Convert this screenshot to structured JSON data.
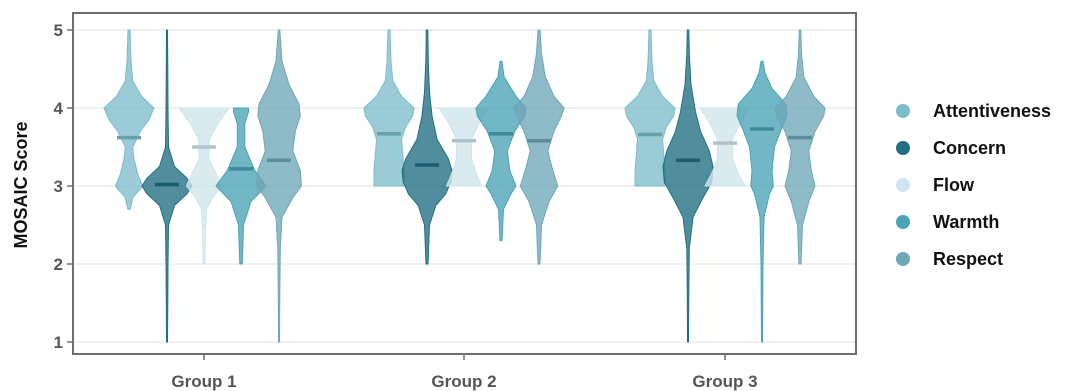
{
  "chart_data": {
    "type": "violin",
    "ylabel": "MOSAIC Score",
    "xlabel": "",
    "ylim": [
      1,
      5
    ],
    "yticks": [
      1,
      2,
      3,
      4,
      5
    ],
    "grid": "horizontal",
    "legend_position": "right",
    "categories": [
      "Group 1",
      "Group 2",
      "Group 3"
    ],
    "series": [
      {
        "name": "Attentiveness",
        "color": "#7dbdca",
        "means": [
          3.62,
          3.67,
          3.66
        ],
        "ranges": [
          [
            2.7,
            5.0
          ],
          [
            3.0,
            5.0
          ],
          [
            3.0,
            5.0
          ]
        ],
        "density": [
          [
            [
              2.7,
              0.05
            ],
            [
              2.85,
              0.15
            ],
            [
              3.0,
              0.55
            ],
            [
              3.15,
              0.35
            ],
            [
              3.35,
              0.2
            ],
            [
              3.5,
              0.15
            ],
            [
              3.7,
              0.45
            ],
            [
              3.85,
              0.8
            ],
            [
              4.0,
              1.0
            ],
            [
              4.15,
              0.5
            ],
            [
              4.35,
              0.15
            ],
            [
              4.6,
              0.08
            ],
            [
              4.8,
              0.06
            ],
            [
              5.0,
              0.04
            ]
          ],
          [
            [
              3.0,
              0.6
            ],
            [
              3.2,
              0.6
            ],
            [
              3.4,
              0.55
            ],
            [
              3.6,
              0.5
            ],
            [
              3.75,
              0.65
            ],
            [
              3.9,
              0.95
            ],
            [
              4.0,
              1.0
            ],
            [
              4.15,
              0.5
            ],
            [
              4.35,
              0.15
            ],
            [
              4.6,
              0.08
            ],
            [
              4.8,
              0.06
            ],
            [
              5.0,
              0.04
            ]
          ],
          [
            [
              3.0,
              0.6
            ],
            [
              3.2,
              0.6
            ],
            [
              3.4,
              0.55
            ],
            [
              3.6,
              0.5
            ],
            [
              3.75,
              0.65
            ],
            [
              3.9,
              0.95
            ],
            [
              4.0,
              1.0
            ],
            [
              4.15,
              0.5
            ],
            [
              4.35,
              0.15
            ],
            [
              4.6,
              0.08
            ],
            [
              4.8,
              0.06
            ],
            [
              5.0,
              0.04
            ]
          ]
        ]
      },
      {
        "name": "Concern",
        "color": "#1f6e83",
        "means": [
          3.02,
          3.27,
          3.33
        ],
        "ranges": [
          [
            1.0,
            5.0
          ],
          [
            2.0,
            5.0
          ],
          [
            1.0,
            5.0
          ]
        ],
        "density": [
          [
            [
              1.0,
              0.02
            ],
            [
              1.5,
              0.03
            ],
            [
              2.0,
              0.04
            ],
            [
              2.5,
              0.06
            ],
            [
              2.75,
              0.3
            ],
            [
              2.9,
              0.8
            ],
            [
              3.0,
              1.0
            ],
            [
              3.1,
              0.8
            ],
            [
              3.25,
              0.3
            ],
            [
              3.5,
              0.06
            ],
            [
              4.0,
              0.04
            ],
            [
              4.5,
              0.03
            ],
            [
              5.0,
              0.02
            ]
          ],
          [
            [
              2.0,
              0.04
            ],
            [
              2.5,
              0.1
            ],
            [
              2.75,
              0.35
            ],
            [
              2.9,
              0.75
            ],
            [
              3.05,
              0.95
            ],
            [
              3.2,
              1.0
            ],
            [
              3.35,
              0.85
            ],
            [
              3.6,
              0.4
            ],
            [
              3.9,
              0.2
            ],
            [
              4.2,
              0.1
            ],
            [
              4.6,
              0.05
            ],
            [
              5.0,
              0.03
            ]
          ],
          [
            [
              1.0,
              0.02
            ],
            [
              1.6,
              0.03
            ],
            [
              2.2,
              0.05
            ],
            [
              2.6,
              0.2
            ],
            [
              2.85,
              0.6
            ],
            [
              3.05,
              0.95
            ],
            [
              3.25,
              1.0
            ],
            [
              3.45,
              0.85
            ],
            [
              3.7,
              0.5
            ],
            [
              3.95,
              0.3
            ],
            [
              4.3,
              0.12
            ],
            [
              4.7,
              0.05
            ],
            [
              5.0,
              0.03
            ]
          ]
        ]
      },
      {
        "name": "Flow",
        "color": "#cfe5ec",
        "means": [
          3.5,
          3.58,
          3.55
        ],
        "ranges": [
          [
            2.0,
            4.0
          ],
          [
            3.0,
            4.0
          ],
          [
            3.0,
            4.0
          ]
        ],
        "density": [
          [
            [
              2.0,
              0.04
            ],
            [
              2.4,
              0.05
            ],
            [
              2.7,
              0.1
            ],
            [
              2.85,
              0.35
            ],
            [
              3.0,
              0.7
            ],
            [
              3.15,
              0.5
            ],
            [
              3.35,
              0.2
            ],
            [
              3.6,
              0.22
            ],
            [
              3.8,
              0.55
            ],
            [
              4.0,
              1.0
            ]
          ],
          [
            [
              3.0,
              0.7
            ],
            [
              3.15,
              0.5
            ],
            [
              3.35,
              0.3
            ],
            [
              3.6,
              0.3
            ],
            [
              3.8,
              0.6
            ],
            [
              4.0,
              1.0
            ]
          ],
          [
            [
              3.0,
              0.8
            ],
            [
              3.15,
              0.55
            ],
            [
              3.35,
              0.3
            ],
            [
              3.6,
              0.3
            ],
            [
              3.8,
              0.6
            ],
            [
              4.0,
              1.0
            ]
          ]
        ]
      },
      {
        "name": "Warmth",
        "color": "#4aa3b6",
        "means": [
          3.22,
          3.67,
          3.73
        ],
        "ranges": [
          [
            2.0,
            4.0
          ],
          [
            2.3,
            4.6
          ],
          [
            1.0,
            4.6
          ]
        ],
        "density": [
          [
            [
              2.0,
              0.05
            ],
            [
              2.5,
              0.1
            ],
            [
              2.8,
              0.4
            ],
            [
              3.0,
              1.0
            ],
            [
              3.2,
              0.55
            ],
            [
              3.5,
              0.15
            ],
            [
              3.8,
              0.15
            ],
            [
              3.95,
              0.3
            ],
            [
              4.0,
              0.3
            ]
          ],
          [
            [
              2.3,
              0.04
            ],
            [
              2.7,
              0.1
            ],
            [
              2.9,
              0.4
            ],
            [
              3.0,
              0.6
            ],
            [
              3.2,
              0.35
            ],
            [
              3.45,
              0.25
            ],
            [
              3.7,
              0.55
            ],
            [
              3.9,
              0.95
            ],
            [
              4.0,
              1.0
            ],
            [
              4.15,
              0.6
            ],
            [
              4.4,
              0.12
            ],
            [
              4.6,
              0.04
            ]
          ],
          [
            [
              1.0,
              0.02
            ],
            [
              2.0,
              0.04
            ],
            [
              2.6,
              0.08
            ],
            [
              2.9,
              0.3
            ],
            [
              3.0,
              0.45
            ],
            [
              3.2,
              0.4
            ],
            [
              3.5,
              0.5
            ],
            [
              3.75,
              0.8
            ],
            [
              3.9,
              1.0
            ],
            [
              4.05,
              0.95
            ],
            [
              4.25,
              0.4
            ],
            [
              4.45,
              0.12
            ],
            [
              4.6,
              0.04
            ]
          ]
        ]
      },
      {
        "name": "Respect",
        "color": "#6fa6b8",
        "means": [
          3.33,
          3.58,
          3.62
        ],
        "ranges": [
          [
            1.0,
            5.0
          ],
          [
            2.0,
            5.0
          ],
          [
            2.0,
            5.0
          ]
        ],
        "density": [
          [
            [
              1.0,
              0.02
            ],
            [
              1.6,
              0.03
            ],
            [
              2.2,
              0.05
            ],
            [
              2.6,
              0.12
            ],
            [
              2.85,
              0.55
            ],
            [
              3.0,
              0.9
            ],
            [
              3.2,
              0.85
            ],
            [
              3.45,
              0.55
            ],
            [
              3.7,
              0.65
            ],
            [
              3.9,
              0.85
            ],
            [
              4.05,
              0.8
            ],
            [
              4.3,
              0.4
            ],
            [
              4.6,
              0.12
            ],
            [
              5.0,
              0.03
            ]
          ],
          [
            [
              2.0,
              0.04
            ],
            [
              2.5,
              0.1
            ],
            [
              2.8,
              0.4
            ],
            [
              3.0,
              0.75
            ],
            [
              3.2,
              0.55
            ],
            [
              3.45,
              0.35
            ],
            [
              3.7,
              0.6
            ],
            [
              3.9,
              0.9
            ],
            [
              4.0,
              1.0
            ],
            [
              4.15,
              0.6
            ],
            [
              4.4,
              0.25
            ],
            [
              4.7,
              0.1
            ],
            [
              5.0,
              0.04
            ]
          ],
          [
            [
              2.0,
              0.04
            ],
            [
              2.5,
              0.1
            ],
            [
              2.8,
              0.35
            ],
            [
              3.0,
              0.6
            ],
            [
              3.2,
              0.45
            ],
            [
              3.45,
              0.35
            ],
            [
              3.7,
              0.6
            ],
            [
              3.9,
              0.95
            ],
            [
              4.0,
              1.0
            ],
            [
              4.15,
              0.55
            ],
            [
              4.4,
              0.15
            ],
            [
              4.7,
              0.06
            ],
            [
              5.0,
              0.03
            ]
          ]
        ]
      }
    ]
  }
}
